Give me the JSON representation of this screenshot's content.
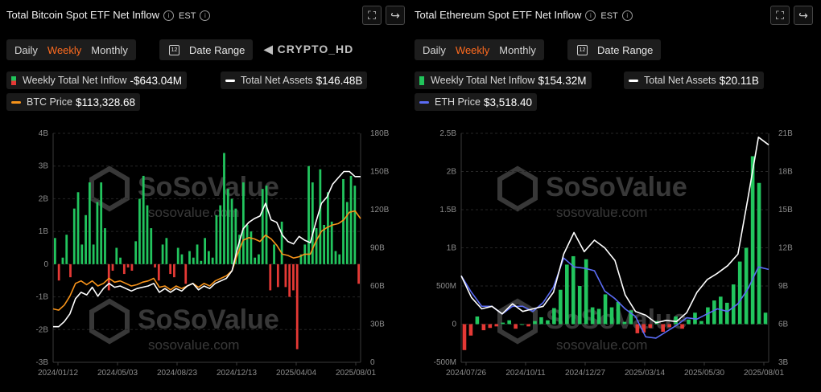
{
  "chart_data": [
    {
      "type": "bar",
      "title": "Total Bitcoin Spot ETF Net Inflow",
      "timezone": "EST",
      "tabs": [
        "Daily",
        "Weekly",
        "Monthly"
      ],
      "active_tab": "Weekly",
      "date_range_label": "Date Range",
      "legend": {
        "inflow": {
          "label": "Weekly Total Net Inflow",
          "value": "-$643.04M"
        },
        "assets": {
          "label": "Total Net Assets",
          "value": "$146.48B"
        },
        "price": {
          "label": "BTC Price",
          "value": "$113,328.68"
        }
      },
      "left_ticks": [
        "4B",
        "3B",
        "2B",
        "1B",
        "0",
        "-1B",
        "-2B",
        "-3B"
      ],
      "right_ticks": [
        "180B",
        "150B",
        "120B",
        "90B",
        "60B",
        "30B",
        "0"
      ],
      "x_ticks": [
        "2024/01/12",
        "2024/05/03",
        "2024/08/23",
        "2024/12/13",
        "2025/04/04",
        "2025/08/01"
      ],
      "ylim_left": [
        -3,
        4
      ],
      "ylim_right": [
        0,
        180
      ],
      "inflow_values": [
        0.8,
        -0.5,
        0.2,
        0.9,
        -0.4,
        1.7,
        2.2,
        0.6,
        1.5,
        2.5,
        0.6,
        1.9,
        2.5,
        1.1,
        -0.8,
        -0.2,
        0.5,
        0.2,
        -0.3,
        -0.1,
        -0.2,
        0.7,
        2.0,
        2.7,
        1.8,
        1.1,
        -0.1,
        -0.5,
        0.6,
        0.8,
        -0.3,
        -0.4,
        0.5,
        0.3,
        -0.6,
        0.4,
        0.2,
        0.6,
        0.1,
        0.8,
        0.4,
        0.2,
        1.5,
        1.8,
        3.4,
        2.3,
        2.0,
        1.7,
        0.9,
        2.5,
        1.2,
        1.0,
        0.2,
        0.3,
        2.3,
        2.4,
        -0.8,
        0.6,
        -0.7,
        1.3,
        -0.7,
        -1.0,
        -0.8,
        -2.6,
        0.3,
        0.6,
        3.0,
        2.5,
        1.1,
        2.9,
        1.2,
        2.2,
        1.3,
        0.4,
        0.3,
        2.6,
        1.9,
        2.7,
        2.4,
        -0.6
      ],
      "net_assets_series": [
        28,
        28,
        32,
        38,
        50,
        55,
        53,
        59,
        52,
        58,
        62,
        59,
        60,
        58,
        56,
        58,
        59,
        60,
        62,
        55,
        58,
        55,
        58,
        56,
        60,
        62,
        57,
        60,
        58,
        62,
        64,
        66,
        72,
        90,
        105,
        110,
        113,
        115,
        125,
        112,
        110,
        100,
        95,
        93,
        99,
        96,
        94,
        110,
        125,
        130,
        140,
        145,
        150,
        150,
        146,
        146
      ],
      "btc_price_series": [
        42,
        41,
        45,
        52,
        62,
        64,
        61,
        64,
        60,
        62,
        66,
        63,
        64,
        62,
        60,
        61,
        63,
        64,
        66,
        59,
        60,
        57,
        60,
        58,
        60,
        62,
        59,
        62,
        60,
        64,
        66,
        68,
        72,
        85,
        96,
        98,
        97,
        95,
        100,
        97,
        92,
        85,
        84,
        82,
        83,
        85,
        85,
        95,
        103,
        106,
        108,
        109,
        112,
        118,
        119,
        113
      ]
    },
    {
      "type": "bar",
      "title": "Total Ethereum Spot ETF Net Inflow",
      "timezone": "EST",
      "tabs": [
        "Daily",
        "Weekly",
        "Monthly"
      ],
      "active_tab": "Weekly",
      "date_range_label": "Date Range",
      "legend": {
        "inflow": {
          "label": "Weekly Total Net Inflow",
          "value": "$154.32M"
        },
        "assets": {
          "label": "Total Net Assets",
          "value": "$20.11B"
        },
        "price": {
          "label": "ETH Price",
          "value": "$3,518.40"
        }
      },
      "left_ticks": [
        "2.5B",
        "2B",
        "1.5B",
        "1B",
        "500M",
        "0",
        "-500M"
      ],
      "right_ticks": [
        "21B",
        "18B",
        "15B",
        "12B",
        "9B",
        "6B",
        "3B"
      ],
      "x_ticks": [
        "2024/07/26",
        "2024/10/11",
        "2024/12/27",
        "2025/03/14",
        "2025/05/30",
        "2025/08/01"
      ],
      "ylim_left": [
        -0.5,
        2.5
      ],
      "ylim_right": [
        3,
        21
      ],
      "inflow_values": [
        -0.34,
        -0.15,
        0.1,
        -0.08,
        -0.05,
        -0.03,
        0.02,
        0.05,
        -0.06,
        0.0,
        -0.03,
        0.04,
        0.09,
        0.05,
        0.21,
        0.45,
        0.78,
        0.89,
        0.5,
        0.85,
        0.22,
        0.2,
        0.39,
        0.22,
        0.29,
        0.03,
        0.18,
        -0.12,
        -0.11,
        -0.05,
        0.04,
        -0.1,
        -0.04,
        0.1,
        -0.06,
        0.06,
        0.15,
        0.04,
        0.22,
        0.31,
        0.36,
        0.28,
        0.52,
        0.82,
        1.0,
        2.2,
        1.85,
        0.15
      ],
      "net_assets_series": [
        9.8,
        8.1,
        7.2,
        7.4,
        6.8,
        7.6,
        7.0,
        7.2,
        7.4,
        8.5,
        11.5,
        13.2,
        11.7,
        12.6,
        12.0,
        11.0,
        8.3,
        7.0,
        6.7,
        6.1,
        6.3,
        6.2,
        6.9,
        8.5,
        9.5,
        10.0,
        10.6,
        11.5,
        16.0,
        20.7,
        20.1
      ],
      "eth_price_series": [
        9.8,
        8.5,
        7.4,
        7.4,
        6.8,
        7.4,
        7.4,
        7.0,
        7.7,
        8.9,
        11.2,
        10.5,
        10.4,
        10.2,
        8.6,
        8.0,
        7.2,
        6.6,
        5.0,
        4.9,
        5.4,
        5.9,
        6.5,
        6.4,
        6.8,
        7.2,
        7.0,
        7.6,
        8.8,
        10.5,
        10.3
      ]
    }
  ]
}
